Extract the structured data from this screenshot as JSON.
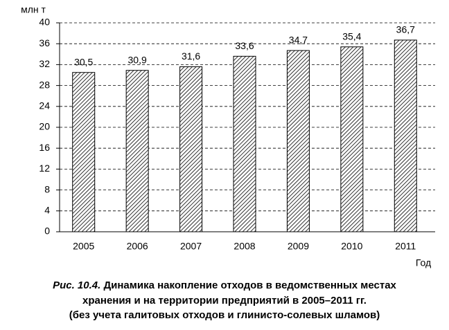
{
  "chart_data": {
    "type": "bar",
    "y_axis_label": "млн т",
    "x_axis_label": "Год",
    "categories": [
      "2005",
      "2006",
      "2007",
      "2008",
      "2009",
      "2010",
      "2011"
    ],
    "values": [
      30.5,
      30.9,
      31.6,
      33.6,
      34.7,
      35.4,
      36.7
    ],
    "value_labels": [
      "30,5",
      "30,9",
      "31,6",
      "33,6",
      "34,7",
      "35,4",
      "36,7"
    ],
    "color": "#000000",
    "ylim": [
      0,
      40
    ],
    "yticks": [
      0,
      4,
      8,
      12,
      16,
      20,
      24,
      28,
      32,
      36,
      40
    ],
    "grid": true,
    "figure_label": "Рис. 10.4.",
    "caption_lines": [
      "Динамика накопление отходов в ведомственных местах",
      "хранения и на территории предприятий в 2005–2011 гг.",
      "(без учета галитовых отходов и глинисто-солевых шламов)"
    ]
  }
}
